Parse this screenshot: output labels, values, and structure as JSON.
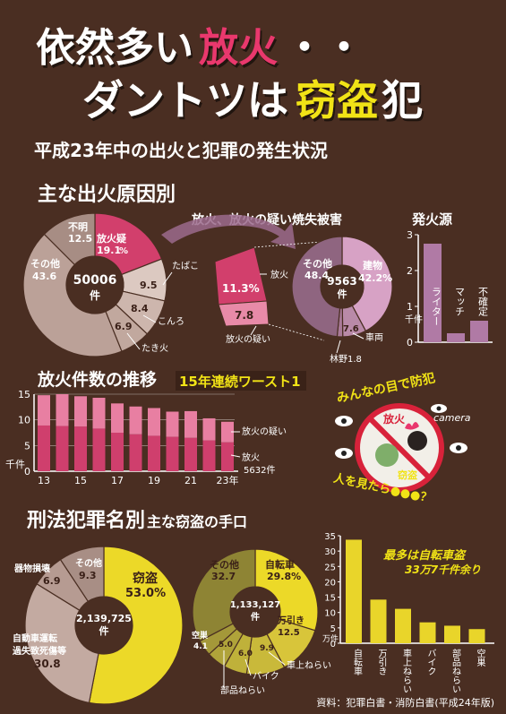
{
  "headline": {
    "line1_a": "依然多い",
    "line1_b": "放火",
    "line1_c": "・・",
    "line2_a": "ダントツは",
    "line2_b": "窃盗",
    "line2_c": "犯"
  },
  "subtitle": "平成23年中の出火と犯罪の発生状況",
  "fire_section": {
    "title": "主な出火原因別",
    "center_total": "50006",
    "center_unit": "件",
    "slices": [
      {
        "label": "放火疑",
        "value": 19.1,
        "value_text": "19.1",
        "unit": "%",
        "color": "#d23f6c"
      },
      {
        "label": "たばこ",
        "value": 9.5,
        "value_text": "9.5",
        "color": "#dcc9c1"
      },
      {
        "label": "こんろ",
        "value": 8.4,
        "value_text": "8.4",
        "color": "#cdb6ad"
      },
      {
        "label": "たき火",
        "value": 6.9,
        "value_text": "6.9",
        "color": "#c1a89e"
      },
      {
        "label": "その他",
        "value": 43.6,
        "value_text": "43.6",
        "color": "#bba198"
      },
      {
        "label": "不明",
        "value": 12.5,
        "value_text": "12.5",
        "color": "#a78d84"
      }
    ],
    "arson_breakdown": {
      "arson_value": "11.3%",
      "arson_label": "放火",
      "suspected_value": "7.8",
      "suspected_label": "放火の疑い"
    }
  },
  "damage_section": {
    "title": "放火、放火の疑い焼失被害",
    "center_total": "9563",
    "center_unit": "件",
    "slices": [
      {
        "label": "建物",
        "value": 42.2,
        "value_text": "42.2%",
        "color": "#d7a2c5"
      },
      {
        "label": "車両",
        "value": 7.6,
        "value_text": "7.6",
        "color": "#b98aa8"
      },
      {
        "label": "林野",
        "value": 1.8,
        "value_text": "林野1.8",
        "color": "#a97a98"
      },
      {
        "label": "その他",
        "value": 48.4,
        "value_text": "48.4",
        "color": "#8f6580"
      }
    ]
  },
  "ignition_chart": {
    "title": "発火源",
    "type": "bar",
    "ylabel": "千件",
    "yticks": [
      "3",
      "2",
      "1",
      "0"
    ],
    "ylim": [
      0,
      3
    ],
    "categories": [
      "ライター",
      "マッチ",
      "不確定"
    ],
    "values": [
      2.75,
      0.25,
      0.6
    ],
    "color": "#b07aa5"
  },
  "arson_trend": {
    "title": "放火件数の推移",
    "badge": "15年連続ワースト1",
    "type": "bar",
    "ylabel": "千件",
    "yticks": [
      "15",
      "10",
      "5",
      "0"
    ],
    "ylim": [
      0,
      15
    ],
    "xticks": [
      "13",
      "15",
      "17",
      "19",
      "21",
      "23年"
    ],
    "years": [
      13,
      14,
      15,
      16,
      17,
      18,
      19,
      20,
      21,
      22,
      23
    ],
    "series": [
      {
        "name": "放火",
        "values": [
          8.9,
          8.8,
          8.7,
          8.3,
          7.5,
          7.2,
          6.9,
          6.7,
          6.5,
          6.0,
          5.632
        ],
        "color": "#cf3f6d"
      },
      {
        "name": "放火の疑い",
        "values": [
          5.9,
          6.2,
          5.9,
          6.0,
          5.7,
          5.4,
          5.4,
          4.9,
          5.2,
          4.3,
          4.0
        ],
        "color": "#e87fa2"
      }
    ],
    "legend": {
      "suspected": "放火の疑い",
      "arson": "放火",
      "arson_value": "5632件"
    }
  },
  "watch_graphic": {
    "top_text": "みんなの目で防犯",
    "bottom_text": "人を見たら●●●？",
    "camera": "camera",
    "sign_arson": "放火",
    "sign_theft": "窃盗"
  },
  "crime_section": {
    "title": "刑法犯罪名別",
    "center_total": "2,139,725",
    "center_unit": "件",
    "slices": [
      {
        "label": "窃盗",
        "value": 53.0,
        "value_text": "53.0%",
        "color": "#ecd928"
      },
      {
        "label": "自動車運転過失致死傷等",
        "value": 30.8,
        "value_text": "30.8",
        "color": "#c3aaa1"
      },
      {
        "label": "器物損壊",
        "value": 6.9,
        "value_text": "6.9",
        "color": "#b69b92"
      },
      {
        "label": "その他",
        "value": 9.3,
        "value_text": "9.3",
        "color": "#a88e85"
      }
    ]
  },
  "theft_section": {
    "title": "主な窃盗の手口",
    "center_total": "1,133,127",
    "center_unit": "件",
    "slices": [
      {
        "label": "自転車",
        "value": 29.8,
        "value_text": "29.8%",
        "color": "#ecd928"
      },
      {
        "label": "万引き",
        "value": 12.5,
        "value_text": "12.5",
        "color": "#d8c53a"
      },
      {
        "label": "車上ねらい",
        "value": 9.9,
        "value_text": "9.9",
        "color": "#c9b93a"
      },
      {
        "label": "バイク",
        "value": 6.0,
        "value_text": "6.0",
        "color": "#bfb13a"
      },
      {
        "label": "部品ねらい",
        "value": 5.0,
        "value_text": "5.0",
        "color": "#b0a33a"
      },
      {
        "label": "空巣",
        "value": 4.1,
        "value_text": "4.1",
        "color": "#a49839"
      },
      {
        "label": "その他",
        "value": 32.7,
        "value_text": "32.7",
        "color": "#8e8434"
      }
    ]
  },
  "theft_bar_chart": {
    "type": "bar",
    "ylabel": "万件",
    "yticks": [
      "35",
      "30",
      "25",
      "20",
      "15",
      "10",
      "5",
      "0"
    ],
    "ylim": [
      0,
      35
    ],
    "categories": [
      "自転車",
      "万引き",
      "車上ねらい",
      "バイク",
      "部品ねらい",
      "空巣"
    ],
    "values": [
      33.7,
      14.2,
      11.2,
      6.8,
      5.7,
      4.6
    ],
    "color": "#e9d52a",
    "callout_line1": "最多は自転車盗",
    "callout_line2": "33万7千件余り"
  },
  "source": "資料：犯罪白書・消防白書(平成24年版)"
}
